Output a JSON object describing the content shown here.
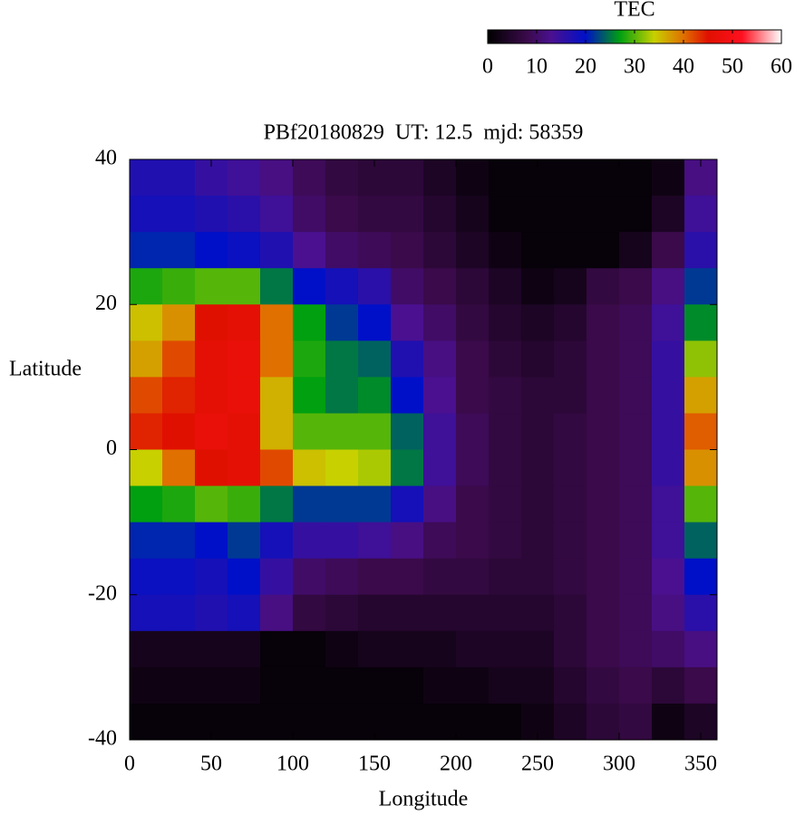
{
  "chart_data": {
    "type": "heatmap",
    "title": "PBf20180829  UT: 12.5  mjd: 58359",
    "xlabel": "Longitude",
    "ylabel": "Latitude",
    "xlim": [
      0,
      360
    ],
    "xticks": [
      0,
      50,
      100,
      150,
      200,
      250,
      300,
      350
    ],
    "ylim": [
      -40,
      40
    ],
    "yticks": [
      -40,
      -20,
      0,
      20,
      40
    ],
    "x": [
      10,
      30,
      50,
      70,
      90,
      110,
      130,
      150,
      170,
      190,
      210,
      230,
      250,
      270,
      290,
      310,
      330,
      350
    ],
    "y": [
      37.5,
      32.5,
      27.5,
      22.5,
      17.5,
      12.5,
      7.5,
      2.5,
      -2.5,
      -7.5,
      -12.5,
      -17.5,
      -22.5,
      -27.5,
      -32.5,
      -37.5
    ],
    "z": [
      [
        17,
        17,
        15,
        14,
        12,
        9,
        7,
        6,
        6,
        4,
        2,
        1,
        1,
        1,
        1,
        1,
        2,
        12
      ],
      [
        18,
        18,
        17,
        16,
        14,
        10,
        8,
        7,
        7,
        5,
        3,
        1,
        1,
        1,
        1,
        1,
        4,
        14
      ],
      [
        21,
        21,
        20,
        19,
        17,
        13,
        10,
        9,
        8,
        6,
        4,
        2,
        1,
        1,
        1,
        3,
        8,
        16
      ],
      [
        28,
        29,
        30,
        30,
        25,
        20,
        18,
        16,
        10,
        8,
        6,
        4,
        2,
        3,
        7,
        8,
        12,
        22
      ],
      [
        35,
        38,
        45,
        46,
        40,
        27,
        22,
        20,
        13,
        10,
        7,
        5,
        4,
        5,
        8,
        9,
        14,
        26
      ],
      [
        37,
        42,
        46,
        47,
        40,
        28,
        25,
        24,
        17,
        12,
        8,
        6,
        5,
        6,
        8,
        9,
        15,
        32
      ],
      [
        42,
        44,
        46,
        47,
        36,
        27,
        25,
        26,
        20,
        13,
        8,
        7,
        6,
        6,
        8,
        9,
        15,
        37
      ],
      [
        44,
        45,
        47,
        46,
        36,
        30,
        30,
        30,
        24,
        14,
        9,
        7,
        6,
        7,
        8,
        9,
        15,
        41
      ],
      [
        34,
        40,
        45,
        46,
        42,
        35,
        34,
        33,
        25,
        14,
        9,
        7,
        6,
        7,
        8,
        9,
        15,
        38
      ],
      [
        27,
        28,
        30,
        29,
        25,
        22,
        22,
        22,
        18,
        12,
        8,
        7,
        6,
        7,
        8,
        9,
        14,
        30
      ],
      [
        21,
        21,
        20,
        22,
        18,
        15,
        15,
        14,
        12,
        9,
        8,
        7,
        6,
        7,
        8,
        9,
        14,
        24
      ],
      [
        19,
        19,
        18,
        20,
        15,
        10,
        9,
        8,
        8,
        7,
        7,
        6,
        6,
        7,
        8,
        9,
        13,
        20
      ],
      [
        18,
        18,
        17,
        18,
        12,
        7,
        6,
        5,
        5,
        5,
        5,
        5,
        5,
        6,
        8,
        9,
        12,
        16
      ],
      [
        3,
        3,
        3,
        3,
        1,
        1,
        2,
        3,
        3,
        3,
        4,
        4,
        4,
        6,
        8,
        9,
        10,
        12
      ],
      [
        2,
        2,
        2,
        2,
        1,
        1,
        1,
        1,
        1,
        2,
        2,
        3,
        3,
        5,
        7,
        8,
        6,
        8
      ],
      [
        1,
        1,
        1,
        1,
        1,
        1,
        1,
        1,
        1,
        1,
        1,
        1,
        2,
        4,
        6,
        7,
        2,
        4
      ]
    ],
    "colorbar": {
      "label": "TEC",
      "lim": [
        0,
        60
      ],
      "ticks": [
        0,
        10,
        20,
        30,
        40,
        50,
        60
      ]
    },
    "colormap": [
      {
        "value": 0,
        "color": "#000000"
      },
      {
        "value": 8,
        "color": "#3a0a4a"
      },
      {
        "value": 13,
        "color": "#4a1090"
      },
      {
        "value": 20,
        "color": "#0010c8"
      },
      {
        "value": 27,
        "color": "#00a010"
      },
      {
        "value": 34,
        "color": "#c8d000"
      },
      {
        "value": 40,
        "color": "#e07000"
      },
      {
        "value": 45,
        "color": "#e01000"
      },
      {
        "value": 52,
        "color": "#ff1020"
      },
      {
        "value": 60,
        "color": "#ffffff"
      }
    ]
  }
}
